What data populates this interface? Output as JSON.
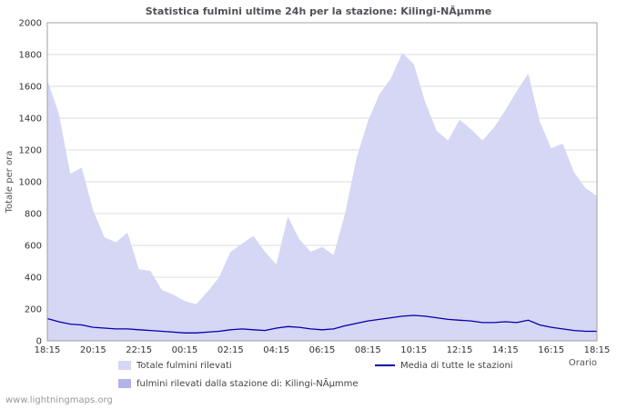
{
  "title": "Statistica fulmini ultime 24h per la stazione: Kilingi-NÃµmme",
  "watermark": "www.lightningmaps.org",
  "legend": {
    "total_label": "Totale fulmini rilevati",
    "media_label": "Media di tutte le stazioni",
    "station_label": "fulmini rilevati dalla stazione di: Kilingi-NÃµmme"
  },
  "colors": {
    "area_total": "#d6d6f5",
    "area_station": "#b3b3e8",
    "line_media": "#0000aa",
    "grid": "#dcdcdc",
    "border": "#a0a0a0"
  },
  "chart_data": {
    "type": "area",
    "title": "Statistica fulmini ultime 24h per la stazione: Kilingi-NÃµmme",
    "xlabel": "Orario",
    "ylabel": "Totale per ora",
    "ylim": [
      0,
      2000
    ],
    "ytick_step": 200,
    "x_label_every": 4,
    "grid": "horizontal",
    "legend_position": "bottom",
    "categories": [
      "18:15",
      "18:45",
      "19:15",
      "19:45",
      "20:15",
      "20:45",
      "21:15",
      "21:45",
      "22:15",
      "22:45",
      "23:15",
      "23:45",
      "00:15",
      "00:45",
      "01:15",
      "01:45",
      "02:15",
      "02:45",
      "03:15",
      "03:45",
      "04:15",
      "04:45",
      "05:15",
      "05:45",
      "06:15",
      "06:45",
      "07:15",
      "07:45",
      "08:15",
      "08:45",
      "09:15",
      "09:45",
      "10:15",
      "10:45",
      "11:15",
      "11:45",
      "12:15",
      "12:45",
      "13:15",
      "13:45",
      "14:15",
      "14:45",
      "15:15",
      "15:45",
      "16:15",
      "16:45",
      "17:15",
      "17:45",
      "18:15"
    ],
    "series": [
      {
        "name": "Totale fulmini rilevati",
        "type": "area",
        "color": "#d6d6f5",
        "values": [
          1640,
          1430,
          1050,
          1090,
          820,
          650,
          620,
          680,
          450,
          440,
          320,
          290,
          250,
          230,
          310,
          400,
          560,
          610,
          660,
          560,
          480,
          780,
          640,
          560,
          590,
          540,
          800,
          1150,
          1380,
          1550,
          1650,
          1810,
          1740,
          1500,
          1320,
          1260,
          1390,
          1330,
          1260,
          1340,
          1450,
          1570,
          1680,
          1380,
          1210,
          1240,
          1060,
          960,
          910
        ]
      },
      {
        "name": "fulmini rilevati dalla stazione di: Kilingi-NÃµmme",
        "type": "area",
        "color": "#b3b3e8",
        "values": [
          0,
          0,
          0,
          0,
          0,
          0,
          0,
          0,
          0,
          0,
          0,
          0,
          0,
          0,
          0,
          0,
          0,
          0,
          0,
          0,
          0,
          0,
          0,
          0,
          0,
          0,
          0,
          0,
          0,
          0,
          0,
          0,
          0,
          0,
          0,
          0,
          0,
          0,
          0,
          0,
          0,
          0,
          0,
          0,
          0,
          0,
          0,
          0,
          0
        ]
      },
      {
        "name": "Media di tutte le stazioni",
        "type": "line",
        "color": "#0000aa",
        "values": [
          140,
          120,
          105,
          100,
          85,
          80,
          75,
          75,
          70,
          65,
          60,
          55,
          50,
          50,
          55,
          60,
          70,
          75,
          70,
          65,
          80,
          90,
          85,
          75,
          70,
          75,
          95,
          110,
          125,
          135,
          145,
          155,
          160,
          155,
          145,
          135,
          130,
          125,
          115,
          115,
          120,
          115,
          130,
          100,
          85,
          75,
          65,
          60,
          60
        ]
      }
    ]
  }
}
